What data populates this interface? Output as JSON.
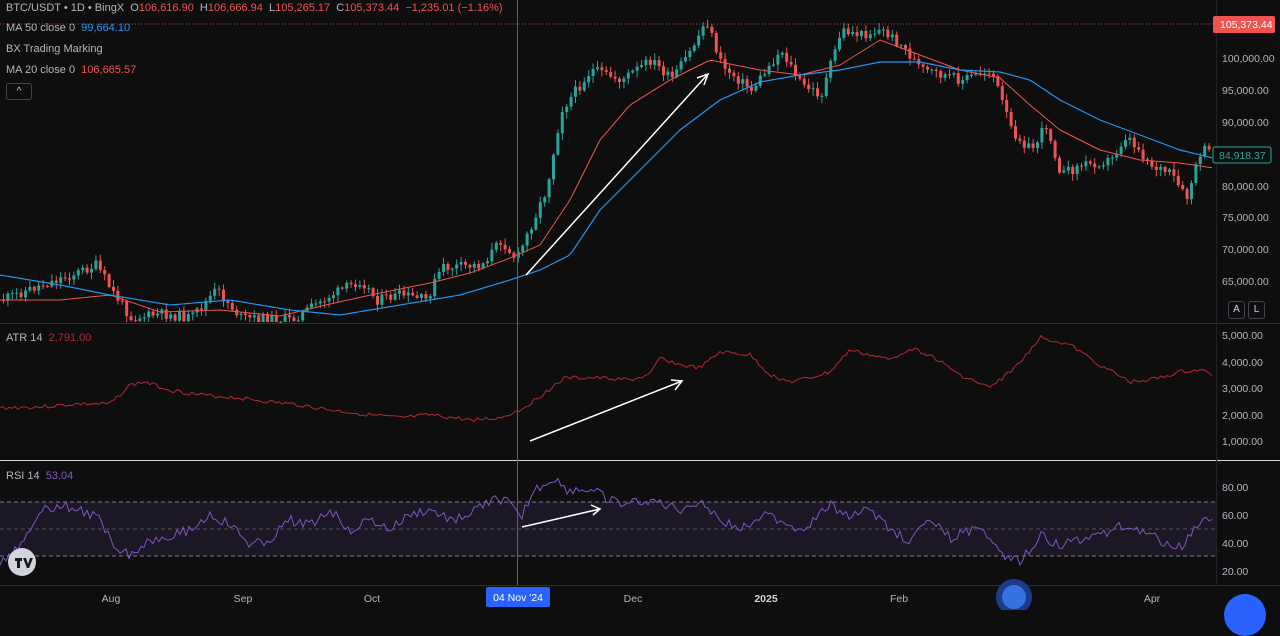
{
  "legend": {
    "symbol": "BTC/USDT • 1D • BingX",
    "ohlc": {
      "o_label": "O",
      "o": "106,616.90",
      "h_label": "H",
      "h": "106,666.94",
      "l_label": "L",
      "l": "105,265.17",
      "c_label": "C",
      "c": "105,373.44",
      "change": "−1,235.01 (−1.16%)"
    },
    "ma50": {
      "label": "MA 50 close 0",
      "value": "99,664.10"
    },
    "bx": {
      "label": "BX Trading Marking"
    },
    "ma20": {
      "label": "MA 20 close 0",
      "value": "106,665.57"
    },
    "collapse_label": "^"
  },
  "price_axis": {
    "labels": [
      "100,000.00",
      "95,000.00",
      "90,000.00",
      "80,000.00",
      "75,000.00",
      "70,000.00",
      "65,000.00"
    ],
    "last_price_tag": "105,373.44",
    "current_price_tag": "84,918.37"
  },
  "buttons": {
    "auto": "A",
    "log": "L"
  },
  "atr": {
    "label": "ATR 14",
    "value": "2,791.00",
    "axis_labels": [
      "5,000.00",
      "4,000.00",
      "3,000.00",
      "2,000.00",
      "1,000.00"
    ]
  },
  "rsi": {
    "label": "RSI 14",
    "value": "53.04",
    "axis_labels": [
      "80.00",
      "60.00",
      "40.00",
      "20.00"
    ]
  },
  "time_axis": {
    "labels": [
      "Aug",
      "Sep",
      "Oct",
      "Dec",
      "2025",
      "Feb",
      "Apr"
    ],
    "crosshair_label": "04 Nov '24"
  },
  "colors": {
    "up": "#26a69a",
    "down": "#ef5350",
    "ma20": "#ef5350",
    "ma50": "#2196f3",
    "atr": "#b22833",
    "rsi": "#7e57c2",
    "crosshair": "#2962ff",
    "arrow": "#ffffff"
  },
  "icons": {
    "logo": "tradingview-logo-icon"
  }
}
